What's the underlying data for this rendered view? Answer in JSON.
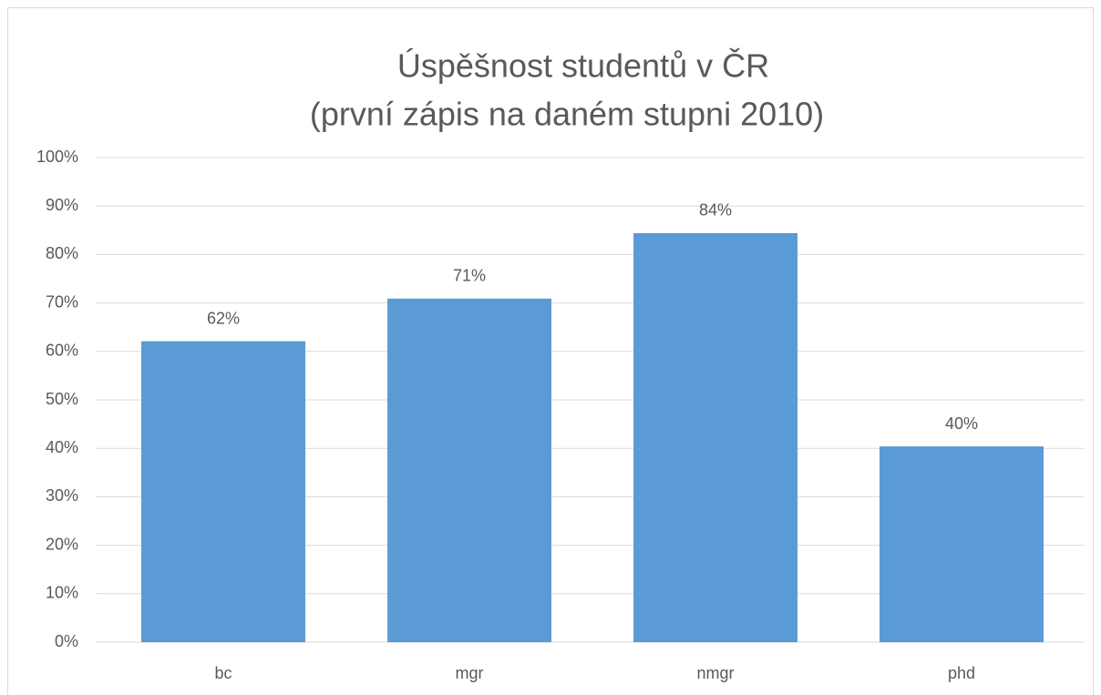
{
  "chart_data": {
    "type": "bar",
    "title": "Úspěšnost studentů v ČR",
    "subtitle": "(první zápis na daném stupni 2010)",
    "categories": [
      "bc",
      "mgr",
      "nmgr",
      "phd"
    ],
    "values": [
      62.1,
      70.9,
      84.4,
      40.4
    ],
    "value_labels": [
      "62%",
      "71%",
      "84%",
      "40%"
    ],
    "color": "#5b9bd5",
    "ylim": [
      0,
      100
    ],
    "yticks": [
      {
        "value": 0,
        "label": "0%"
      },
      {
        "value": 10,
        "label": "10%"
      },
      {
        "value": 20,
        "label": "20%"
      },
      {
        "value": 30,
        "label": "30%"
      },
      {
        "value": 40,
        "label": "40%"
      },
      {
        "value": 50,
        "label": "50%"
      },
      {
        "value": 60,
        "label": "60%"
      },
      {
        "value": 70,
        "label": "70%"
      },
      {
        "value": 80,
        "label": "80%"
      },
      {
        "value": 90,
        "label": "90%"
      },
      {
        "value": 100,
        "label": "100%"
      }
    ],
    "grid": true
  }
}
